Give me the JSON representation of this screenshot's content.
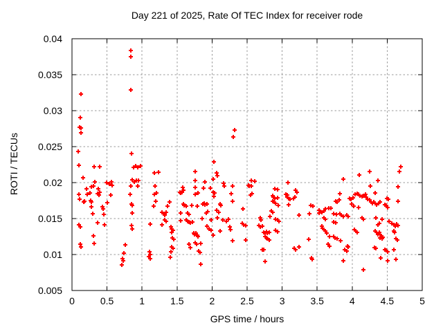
{
  "window": {
    "background": "#ffffff"
  },
  "chart_data": {
    "type": "scatter",
    "title": "Day 221 of 2025, Rate Of TEC Index for receiver rode",
    "xlabel": "GPS time / hours",
    "ylabel": "ROTI / TECUs",
    "xlim": [
      0,
      5
    ],
    "ylim": [
      0.005,
      0.04
    ],
    "xticks": {
      "values": [
        0,
        0.5,
        1,
        1.5,
        2,
        2.5,
        3,
        3.5,
        4,
        4.5,
        5
      ],
      "labels": [
        "0",
        "0.5",
        "1",
        "1.5",
        "2",
        "2.5",
        "3",
        "3.5",
        "4",
        "4.5",
        "5"
      ]
    },
    "yticks": {
      "values": [
        0.005,
        0.01,
        0.015,
        0.02,
        0.025,
        0.03,
        0.035,
        0.04
      ],
      "labels": [
        "0.005",
        "0.01",
        "0.015",
        "0.02",
        "0.025",
        "0.03",
        "0.035",
        "0.04"
      ]
    },
    "grid": {
      "show": true,
      "color": "#999999",
      "dash": "2.5,3"
    },
    "axis_color": "#000000",
    "marker": {
      "shape": "plus",
      "color": "#ff0000",
      "size": 7,
      "stroke_width": 2
    },
    "legend": {
      "show": false
    },
    "points": [
      [
        0.84,
        0.0384
      ],
      [
        0.84,
        0.0375
      ],
      [
        0.84,
        0.0329
      ],
      [
        0.13,
        0.0323
      ],
      [
        0.12,
        0.029
      ],
      [
        0.11,
        0.0277
      ],
      [
        0.13,
        0.0276
      ],
      [
        0.13,
        0.0269
      ],
      [
        0.09,
        0.0243
      ],
      [
        0.85,
        0.024
      ],
      [
        0.1,
        0.0224
      ],
      [
        0.32,
        0.0222
      ],
      [
        0.4,
        0.0222
      ],
      [
        2.32,
        0.0273
      ],
      [
        2.3,
        0.0263
      ],
      [
        2.03,
        0.0229
      ],
      [
        0.88,
        0.0221
      ],
      [
        0.91,
        0.0223
      ],
      [
        0.94,
        0.0221
      ],
      [
        0.98,
        0.0223
      ],
      [
        1.18,
        0.0213
      ],
      [
        0.16,
        0.0207
      ],
      [
        0.33,
        0.0201
      ],
      [
        0.49,
        0.02
      ],
      [
        0.53,
        0.0198
      ],
      [
        0.56,
        0.0201
      ],
      [
        0.57,
        0.0196
      ],
      [
        0.86,
        0.0204
      ],
      [
        0.89,
        0.0201
      ],
      [
        0.92,
        0.0203
      ],
      [
        0.95,
        0.0203
      ],
      [
        0.84,
        0.0195
      ],
      [
        0.94,
        0.0195
      ],
      [
        0.21,
        0.0191
      ],
      [
        0.28,
        0.0194
      ],
      [
        0.31,
        0.0195
      ],
      [
        0.38,
        0.0191
      ],
      [
        0.4,
        0.0187
      ],
      [
        0.1,
        0.0184
      ],
      [
        0.11,
        0.0177
      ],
      [
        0.22,
        0.0184
      ],
      [
        0.26,
        0.0186
      ],
      [
        0.37,
        0.0185
      ],
      [
        0.39,
        0.0183
      ],
      [
        0.55,
        0.0183
      ],
      [
        0.83,
        0.0184
      ],
      [
        0.17,
        0.0173
      ],
      [
        0.18,
        0.0174
      ],
      [
        0.27,
        0.0175
      ],
      [
        0.28,
        0.0173
      ],
      [
        0.5,
        0.0172
      ],
      [
        0.85,
        0.017
      ],
      [
        0.86,
        0.0168
      ],
      [
        0.28,
        0.0166
      ],
      [
        0.43,
        0.0166
      ],
      [
        0.44,
        0.0163
      ],
      [
        0.3,
        0.0157
      ],
      [
        0.45,
        0.0156
      ],
      [
        0.86,
        0.0158
      ],
      [
        0.37,
        0.0144
      ],
      [
        0.46,
        0.0141
      ],
      [
        0.1,
        0.0141
      ],
      [
        0.12,
        0.0138
      ],
      [
        0.85,
        0.014
      ],
      [
        0.86,
        0.0136
      ],
      [
        1.12,
        0.0142
      ],
      [
        0.31,
        0.0126
      ],
      [
        0.32,
        0.0115
      ],
      [
        0.12,
        0.0114
      ],
      [
        0.13,
        0.0111
      ],
      [
        0.76,
        0.0113
      ],
      [
        0.74,
        0.0102
      ],
      [
        0.72,
        0.0094
      ],
      [
        0.73,
        0.0091
      ],
      [
        0.71,
        0.0086
      ],
      [
        1.11,
        0.0104
      ],
      [
        1.12,
        0.01
      ],
      [
        1.1,
        0.0097
      ],
      [
        1.12,
        0.0094
      ],
      [
        1.19,
        0.0195
      ],
      [
        1.21,
        0.0186
      ],
      [
        1.18,
        0.0184
      ],
      [
        1.2,
        0.0174
      ],
      [
        1.17,
        0.0167
      ],
      [
        1.24,
        0.0214
      ],
      [
        1.76,
        0.0215
      ],
      [
        2.07,
        0.0213
      ],
      [
        2.08,
        0.021
      ],
      [
        2.02,
        0.0205
      ],
      [
        1.76,
        0.0203
      ],
      [
        1.9,
        0.0201
      ],
      [
        2.16,
        0.0199
      ],
      [
        2.17,
        0.0195
      ],
      [
        2.29,
        0.0195
      ],
      [
        1.58,
        0.0193
      ],
      [
        1.76,
        0.0193
      ],
      [
        1.88,
        0.0192
      ],
      [
        1.98,
        0.0192
      ],
      [
        1.54,
        0.0187
      ],
      [
        1.55,
        0.0186
      ],
      [
        1.57,
        0.0187
      ],
      [
        1.59,
        0.0189
      ],
      [
        1.76,
        0.0184
      ],
      [
        1.8,
        0.0186
      ],
      [
        2.02,
        0.0187
      ],
      [
        2.04,
        0.0186
      ],
      [
        2.27,
        0.0185
      ],
      [
        2.03,
        0.0181
      ],
      [
        2.29,
        0.0174
      ],
      [
        1.39,
        0.0173
      ],
      [
        1.59,
        0.017
      ],
      [
        1.6,
        0.0168
      ],
      [
        1.63,
        0.0167
      ],
      [
        1.71,
        0.0168
      ],
      [
        1.79,
        0.0167
      ],
      [
        1.87,
        0.017
      ],
      [
        1.89,
        0.0171
      ],
      [
        1.9,
        0.0169
      ],
      [
        1.93,
        0.017
      ],
      [
        1.36,
        0.0167
      ],
      [
        2.11,
        0.017
      ],
      [
        2.12,
        0.0168
      ],
      [
        1.28,
        0.0159
      ],
      [
        1.31,
        0.0157
      ],
      [
        1.32,
        0.0155
      ],
      [
        1.34,
        0.0159
      ],
      [
        1.55,
        0.0158
      ],
      [
        1.65,
        0.0158
      ],
      [
        1.67,
        0.0156
      ],
      [
        1.92,
        0.0158
      ],
      [
        1.94,
        0.016
      ],
      [
        2.07,
        0.0162
      ],
      [
        2.09,
        0.0159
      ],
      [
        2.44,
        0.0163
      ],
      [
        1.32,
        0.0148
      ],
      [
        1.34,
        0.0146
      ],
      [
        1.28,
        0.0141
      ],
      [
        1.55,
        0.0147
      ],
      [
        1.63,
        0.0148
      ],
      [
        1.65,
        0.0146
      ],
      [
        1.67,
        0.0145
      ],
      [
        1.69,
        0.0144
      ],
      [
        1.72,
        0.0145
      ],
      [
        1.86,
        0.015
      ],
      [
        1.99,
        0.0148
      ],
      [
        2.08,
        0.0151
      ],
      [
        2.15,
        0.0148
      ],
      [
        2.2,
        0.0146
      ],
      [
        2.23,
        0.0149
      ],
      [
        2.43,
        0.0143
      ],
      [
        2.45,
        0.0141
      ],
      [
        1.41,
        0.0138
      ],
      [
        1.42,
        0.0136
      ],
      [
        1.44,
        0.0134
      ],
      [
        1.42,
        0.0131
      ],
      [
        1.93,
        0.0139
      ],
      [
        1.96,
        0.0136
      ],
      [
        1.99,
        0.0134
      ],
      [
        2.11,
        0.0133
      ],
      [
        2.25,
        0.0138
      ],
      [
        2.26,
        0.0135
      ],
      [
        1.74,
        0.013
      ],
      [
        1.75,
        0.0128
      ],
      [
        1.77,
        0.013
      ],
      [
        1.79,
        0.0127
      ],
      [
        1.8,
        0.0125
      ],
      [
        1.43,
        0.0123
      ],
      [
        1.45,
        0.0121
      ],
      [
        2.29,
        0.0119
      ],
      [
        2.02,
        0.0127
      ],
      [
        1.67,
        0.0114
      ],
      [
        1.69,
        0.011
      ],
      [
        1.76,
        0.0116
      ],
      [
        1.78,
        0.0114
      ],
      [
        1.84,
        0.0115
      ],
      [
        1.42,
        0.0111
      ],
      [
        1.44,
        0.0109
      ],
      [
        1.41,
        0.0104
      ],
      [
        1.81,
        0.0105
      ],
      [
        1.83,
        0.0103
      ],
      [
        1.4,
        0.0096
      ],
      [
        1.84,
        0.0087
      ],
      [
        2.56,
        0.0203
      ],
      [
        2.61,
        0.0202
      ],
      [
        2.53,
        0.0195
      ],
      [
        2.52,
        0.0196
      ],
      [
        2.56,
        0.0195
      ],
      [
        2.57,
        0.0185
      ],
      [
        2.55,
        0.0183
      ],
      [
        3.08,
        0.02
      ],
      [
        2.9,
        0.0191
      ],
      [
        2.93,
        0.019
      ],
      [
        3.19,
        0.0189
      ],
      [
        3.21,
        0.0187
      ],
      [
        2.87,
        0.0182
      ],
      [
        2.88,
        0.018
      ],
      [
        2.9,
        0.0178
      ],
      [
        2.93,
        0.0179
      ],
      [
        3.05,
        0.0184
      ],
      [
        3.07,
        0.0183
      ],
      [
        3.07,
        0.018
      ],
      [
        3.09,
        0.0178
      ],
      [
        3.11,
        0.0177
      ],
      [
        3.16,
        0.0178
      ],
      [
        3.18,
        0.018
      ],
      [
        2.87,
        0.0174
      ],
      [
        2.89,
        0.0173
      ],
      [
        2.91,
        0.0171
      ],
      [
        2.94,
        0.0168
      ],
      [
        3.09,
        0.0169
      ],
      [
        2.85,
        0.0161
      ],
      [
        2.87,
        0.0159
      ],
      [
        2.83,
        0.0153
      ],
      [
        2.91,
        0.0149
      ],
      [
        2.93,
        0.0148
      ],
      [
        2.95,
        0.0146
      ],
      [
        2.91,
        0.0134
      ],
      [
        2.93,
        0.0132
      ],
      [
        2.69,
        0.0151
      ],
      [
        2.7,
        0.0148
      ],
      [
        2.67,
        0.014
      ],
      [
        2.69,
        0.0138
      ],
      [
        2.72,
        0.0139
      ],
      [
        2.48,
        0.014
      ],
      [
        2.74,
        0.0131
      ],
      [
        2.76,
        0.013
      ],
      [
        2.78,
        0.0132
      ],
      [
        2.79,
        0.013
      ],
      [
        2.82,
        0.0131
      ],
      [
        2.76,
        0.0125
      ],
      [
        2.78,
        0.0123
      ],
      [
        2.79,
        0.0122
      ],
      [
        2.82,
        0.012
      ],
      [
        2.48,
        0.012
      ],
      [
        2.72,
        0.0107
      ],
      [
        2.74,
        0.0107
      ],
      [
        3.24,
        0.0155
      ],
      [
        3.39,
        0.0157
      ],
      [
        3.41,
        0.0168
      ],
      [
        3.44,
        0.0167
      ],
      [
        3.53,
        0.0162
      ],
      [
        3.55,
        0.016
      ],
      [
        3.57,
        0.0159
      ],
      [
        3.53,
        0.0158
      ],
      [
        3.6,
        0.0161
      ],
      [
        3.62,
        0.0163
      ],
      [
        3.67,
        0.0164
      ],
      [
        3.7,
        0.0164
      ],
      [
        3.6,
        0.0151
      ],
      [
        3.62,
        0.0149
      ],
      [
        3.57,
        0.0139
      ],
      [
        3.58,
        0.0137
      ],
      [
        3.6,
        0.0135
      ],
      [
        3.62,
        0.0133
      ],
      [
        3.64,
        0.013
      ],
      [
        3.68,
        0.0125
      ],
      [
        3.38,
        0.0121
      ],
      [
        3.17,
        0.0109
      ],
      [
        3.19,
        0.0107
      ],
      [
        3.24,
        0.0111
      ],
      [
        3.66,
        0.0114
      ],
      [
        3.68,
        0.0112
      ],
      [
        3.42,
        0.0095
      ],
      [
        3.43,
        0.0093
      ],
      [
        2.76,
        0.009
      ],
      [
        4.69,
        0.0222
      ],
      [
        4.67,
        0.0215
      ],
      [
        4.25,
        0.0215
      ],
      [
        4.1,
        0.0211
      ],
      [
        3.87,
        0.0205
      ],
      [
        4.37,
        0.0203
      ],
      [
        4.26,
        0.0195
      ],
      [
        4.65,
        0.0194
      ],
      [
        4.33,
        0.0186
      ],
      [
        3.82,
        0.0185
      ],
      [
        3.81,
        0.0176
      ],
      [
        3.78,
        0.0173
      ],
      [
        3.76,
        0.0174
      ],
      [
        3.96,
        0.0178
      ],
      [
        3.98,
        0.0177
      ],
      [
        4.01,
        0.0179
      ],
      [
        4.04,
        0.0184
      ],
      [
        4.07,
        0.0185
      ],
      [
        4.09,
        0.0184
      ],
      [
        4.11,
        0.0182
      ],
      [
        4.14,
        0.0181
      ],
      [
        4.16,
        0.0182
      ],
      [
        4.19,
        0.0184
      ],
      [
        4.2,
        0.018
      ],
      [
        4.22,
        0.0177
      ],
      [
        4.25,
        0.0176
      ],
      [
        4.27,
        0.0173
      ],
      [
        4.29,
        0.0171
      ],
      [
        4.31,
        0.0173
      ],
      [
        4.33,
        0.0171
      ],
      [
        4.35,
        0.0169
      ],
      [
        4.38,
        0.0171
      ],
      [
        4.4,
        0.0173
      ],
      [
        4.02,
        0.0167
      ],
      [
        3.99,
        0.017
      ],
      [
        4.09,
        0.0165
      ],
      [
        4.5,
        0.0178
      ],
      [
        4.52,
        0.0177
      ],
      [
        4.47,
        0.0169
      ],
      [
        4.49,
        0.0168
      ],
      [
        4.51,
        0.0165
      ],
      [
        4.65,
        0.0174
      ],
      [
        3.74,
        0.0157
      ],
      [
        3.77,
        0.0156
      ],
      [
        3.82,
        0.0157
      ],
      [
        3.84,
        0.0155
      ],
      [
        3.87,
        0.0153
      ],
      [
        3.92,
        0.0155
      ],
      [
        3.94,
        0.0153
      ],
      [
        3.74,
        0.0145
      ],
      [
        3.76,
        0.0144
      ],
      [
        4.14,
        0.0151
      ],
      [
        4.16,
        0.0149
      ],
      [
        4.34,
        0.0151
      ],
      [
        4.37,
        0.0141
      ],
      [
        4.39,
        0.0143
      ],
      [
        4.43,
        0.0149
      ],
      [
        4.53,
        0.0146
      ],
      [
        4.57,
        0.0143
      ],
      [
        4.59,
        0.0141
      ],
      [
        4.61,
        0.0139
      ],
      [
        4.63,
        0.0142
      ],
      [
        4.65,
        0.014
      ],
      [
        4.03,
        0.0135
      ],
      [
        4.05,
        0.0133
      ],
      [
        4.07,
        0.0131
      ],
      [
        4.33,
        0.0133
      ],
      [
        4.35,
        0.0131
      ],
      [
        4.37,
        0.0128
      ],
      [
        4.39,
        0.0131
      ],
      [
        4.4,
        0.0128
      ],
      [
        4.42,
        0.0126
      ],
      [
        4.44,
        0.0124
      ],
      [
        4.4,
        0.0123
      ],
      [
        4.43,
        0.0122
      ],
      [
        4.62,
        0.0122
      ],
      [
        4.64,
        0.012
      ],
      [
        4.59,
        0.0133
      ],
      [
        4.6,
        0.0131
      ],
      [
        3.74,
        0.0125
      ],
      [
        3.75,
        0.0123
      ],
      [
        3.78,
        0.0122
      ],
      [
        3.83,
        0.0119
      ],
      [
        3.93,
        0.0112
      ],
      [
        3.94,
        0.0111
      ],
      [
        3.89,
        0.0107
      ],
      [
        3.92,
        0.0105
      ],
      [
        4.32,
        0.011
      ],
      [
        4.34,
        0.0109
      ],
      [
        4.47,
        0.0107
      ],
      [
        4.49,
        0.0106
      ],
      [
        4.51,
        0.0104
      ],
      [
        4.59,
        0.0107
      ],
      [
        4.41,
        0.0095
      ],
      [
        4.51,
        0.0091
      ],
      [
        4.62,
        0.0093
      ],
      [
        3.87,
        0.0091
      ],
      [
        4.16,
        0.0079
      ]
    ]
  }
}
